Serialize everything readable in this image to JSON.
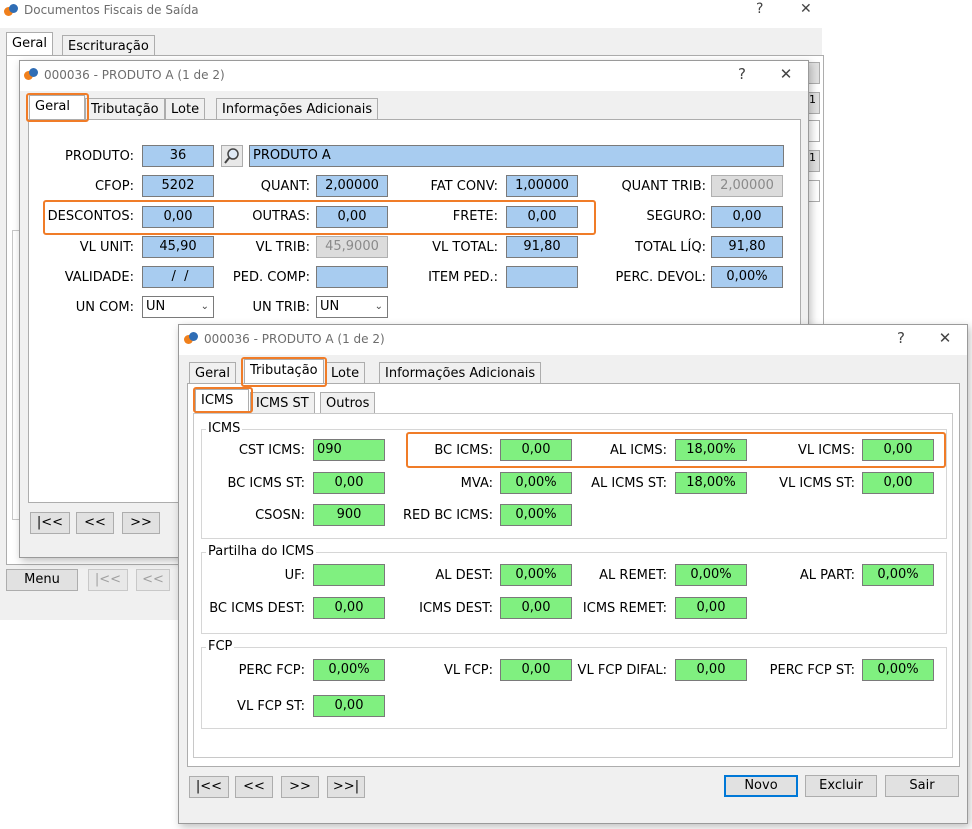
{
  "main_window": {
    "title": "Documentos Fiscais de Saída",
    "help": "?",
    "close": "✕",
    "tabs": [
      "Geral",
      "Escrituração"
    ],
    "menu_button": "Menu",
    "nav": [
      "|<<",
      "<<"
    ]
  },
  "product_window": {
    "title": "000036 - PRODUTO A (1 de 2)",
    "help": "?",
    "close": "✕",
    "tabs": [
      "Geral",
      "Tributação",
      "Lote",
      "Informações Adicionais"
    ],
    "fields": {
      "produto": {
        "label": "PRODUTO:",
        "value": "36"
      },
      "produto_desc": "PRODUTO A",
      "cfop": {
        "label": "CFOP:",
        "value": "5202"
      },
      "quant": {
        "label": "QUANT:",
        "value": "2,00000"
      },
      "fat_conv": {
        "label": "FAT CONV:",
        "value": "1,00000"
      },
      "quant_trib": {
        "label": "QUANT TRIB:",
        "value": "2,00000"
      },
      "descontos": {
        "label": "DESCONTOS:",
        "value": "0,00"
      },
      "outras": {
        "label": "OUTRAS:",
        "value": "0,00"
      },
      "frete": {
        "label": "FRETE:",
        "value": "0,00"
      },
      "seguro": {
        "label": "SEGURO:",
        "value": "0,00"
      },
      "vl_unit": {
        "label": "VL UNIT:",
        "value": "45,90"
      },
      "vl_trib": {
        "label": "VL TRIB:",
        "value": "45,9000"
      },
      "vl_total": {
        "label": "VL TOTAL:",
        "value": "91,80"
      },
      "total_liq": {
        "label": "TOTAL LÍQ:",
        "value": "91,80"
      },
      "validade": {
        "label": "VALIDADE:",
        "value": " /  /"
      },
      "ped_comp": {
        "label": "PED. COMP:",
        "value": ""
      },
      "item_ped": {
        "label": "ITEM PED.:",
        "value": ""
      },
      "perc_devol": {
        "label": "PERC. DEVOL:",
        "value": "0,00%"
      },
      "un_com": {
        "label": "UN COM:",
        "value": "UN"
      },
      "un_trib": {
        "label": "UN TRIB:",
        "value": "UN"
      }
    },
    "nav": [
      "|<<",
      "<<",
      ">>"
    ]
  },
  "trib_window": {
    "title": "000036 - PRODUTO A (1 de 2)",
    "help": "?",
    "close": "✕",
    "tabs": [
      "Geral",
      "Tributação",
      "Lote",
      "Informações Adicionais"
    ],
    "subtabs": [
      "ICMS",
      "ICMS ST",
      "Outros"
    ],
    "icms": {
      "title": "ICMS",
      "cst_icms": {
        "label": "CST ICMS:",
        "value": "090"
      },
      "bc_icms": {
        "label": "BC ICMS:",
        "value": "0,00"
      },
      "al_icms": {
        "label": "AL ICMS:",
        "value": "18,00%"
      },
      "vl_icms": {
        "label": "VL ICMS:",
        "value": "0,00"
      },
      "bc_icms_st": {
        "label": "BC ICMS ST:",
        "value": "0,00"
      },
      "mva": {
        "label": "MVA:",
        "value": "0,00%"
      },
      "al_icms_st": {
        "label": "AL ICMS ST:",
        "value": "18,00%"
      },
      "vl_icms_st": {
        "label": "VL ICMS ST:",
        "value": "0,00"
      },
      "csosn": {
        "label": "CSOSN:",
        "value": "900"
      },
      "red_bc_icms": {
        "label": "RED BC ICMS:",
        "value": "0,00%"
      }
    },
    "partilha": {
      "title": "Partilha do ICMS",
      "uf": {
        "label": "UF:",
        "value": ""
      },
      "al_dest": {
        "label": "AL DEST:",
        "value": "0,00%"
      },
      "al_remet": {
        "label": "AL REMET:",
        "value": "0,00%"
      },
      "al_part": {
        "label": "AL PART:",
        "value": "0,00%"
      },
      "bc_icms_dest": {
        "label": "BC ICMS DEST:",
        "value": "0,00"
      },
      "icms_dest": {
        "label": "ICMS DEST:",
        "value": "0,00"
      },
      "icms_remet": {
        "label": "ICMS REMET:",
        "value": "0,00"
      }
    },
    "fcp": {
      "title": "FCP",
      "perc_fcp": {
        "label": "PERC FCP:",
        "value": "0,00%"
      },
      "vl_fcp": {
        "label": "VL FCP:",
        "value": "0,00"
      },
      "vl_fcp_difal": {
        "label": "VL FCP DIFAL:",
        "value": "0,00"
      },
      "perc_fcp_st": {
        "label": "PERC FCP ST:",
        "value": "0,00%"
      },
      "vl_fcp_st": {
        "label": "VL FCP ST:",
        "value": "0,00"
      }
    },
    "nav": [
      "|<<",
      "<<",
      ">>",
      ">>|"
    ],
    "actions": {
      "novo": "Novo",
      "excluir": "Excluir",
      "sair": "Sair"
    }
  },
  "colors": {
    "field_blue": "#a8ccf0",
    "field_green": "#80f080",
    "highlight_orange": "#f07c28",
    "default_button_border": "#0078d7"
  }
}
